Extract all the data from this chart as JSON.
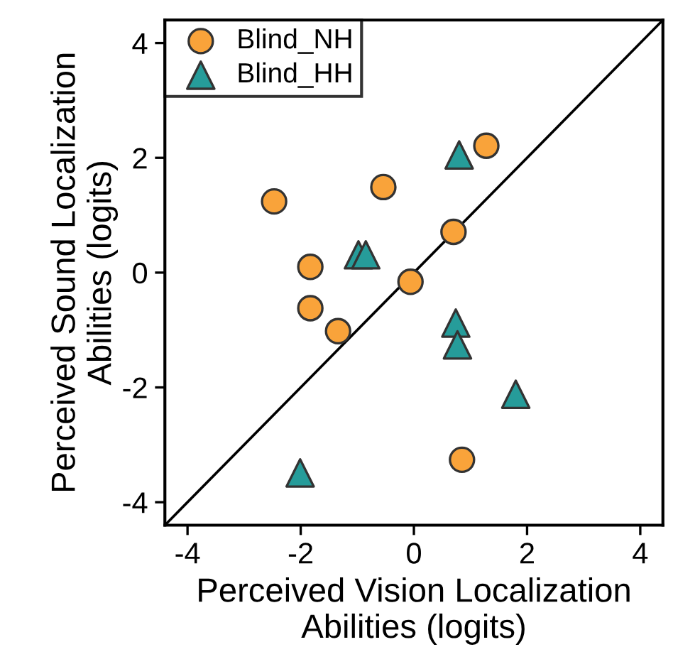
{
  "chart_data": {
    "type": "scatter",
    "xlabel": "Perceived Vision Localization\nAbilities (logits)",
    "ylabel": "Perceived Sound Localization\nAbilities (logits)",
    "xlim": [
      -4.4,
      4.4
    ],
    "ylim": [
      -4.4,
      4.4
    ],
    "xticks": [
      -4,
      -2,
      0,
      2,
      4
    ],
    "yticks": [
      -4,
      -2,
      0,
      2,
      4
    ],
    "grid": false,
    "legend": "top left",
    "series": [
      {
        "name": "Blind_NH",
        "color": "#f9a33a",
        "marker": "circle",
        "x": [
          -2.47,
          -1.83,
          -1.83,
          -1.34,
          -0.54,
          -0.06,
          0.7,
          1.28,
          0.85
        ],
        "values": [
          1.24,
          0.1,
          -0.62,
          -1.02,
          1.49,
          -0.16,
          0.71,
          2.21,
          -3.26
        ]
      },
      {
        "name": "Blind_HH",
        "color": "#269c9a",
        "marker": "triangle",
        "x": [
          0.8,
          -0.98,
          -0.85,
          0.74,
          0.77,
          1.8,
          -2.01
        ],
        "values": [
          2.05,
          0.31,
          0.31,
          -0.88,
          -1.26,
          -2.12,
          -3.49
        ]
      },
      {
        "type": "line",
        "color": "#000000",
        "x": [
          -4.4,
          4.4
        ],
        "values": [
          -4.4,
          4.4
        ]
      }
    ]
  }
}
